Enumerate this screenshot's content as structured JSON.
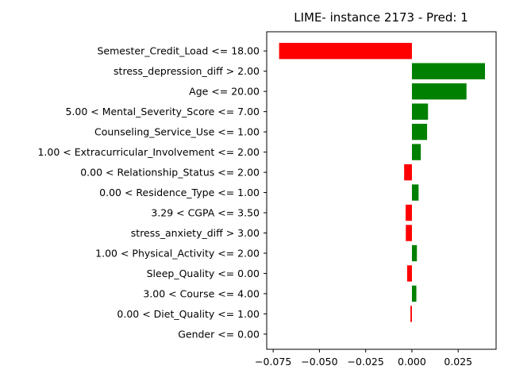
{
  "chart_data": {
    "type": "bar",
    "orientation": "horizontal",
    "title": "LIME- instance 2173 - Pred: 1",
    "xlabel": "",
    "ylabel": "",
    "xlim": [
      -0.0785,
      0.0455
    ],
    "xticks": [
      -0.075,
      -0.05,
      -0.025,
      0.0,
      0.025
    ],
    "xtick_labels": [
      "−0.075",
      "−0.050",
      "−0.025",
      "0.000",
      "0.025"
    ],
    "grid": false,
    "legend": "none",
    "positive_color": "#008000",
    "negative_color": "#ff0000",
    "categories": [
      "Semester_Credit_Load <= 18.00",
      "stress_depression_diff > 2.00",
      "Age <= 20.00",
      "5.00 < Mental_Severity_Score <= 7.00",
      "Counseling_Service_Use <= 1.00",
      "1.00 < Extracurricular_Involvement <= 2.00",
      "0.00 < Relationship_Status <= 2.00",
      "0.00 < Residence_Type <= 1.00",
      "3.29 < CGPA <= 3.50",
      "stress_anxiety_diff > 3.00",
      "1.00 < Physical_Activity <= 2.00",
      "Sleep_Quality <= 0.00",
      "3.00 < Course <= 4.00",
      "0.00 < Diet_Quality <= 1.00",
      "Gender <= 0.00"
    ],
    "values": [
      -0.0718,
      0.0395,
      0.0295,
      0.0087,
      0.0082,
      0.0048,
      -0.0042,
      0.0036,
      -0.0034,
      -0.0033,
      0.0027,
      -0.0026,
      0.0024,
      -0.0008,
      0.0
    ]
  }
}
